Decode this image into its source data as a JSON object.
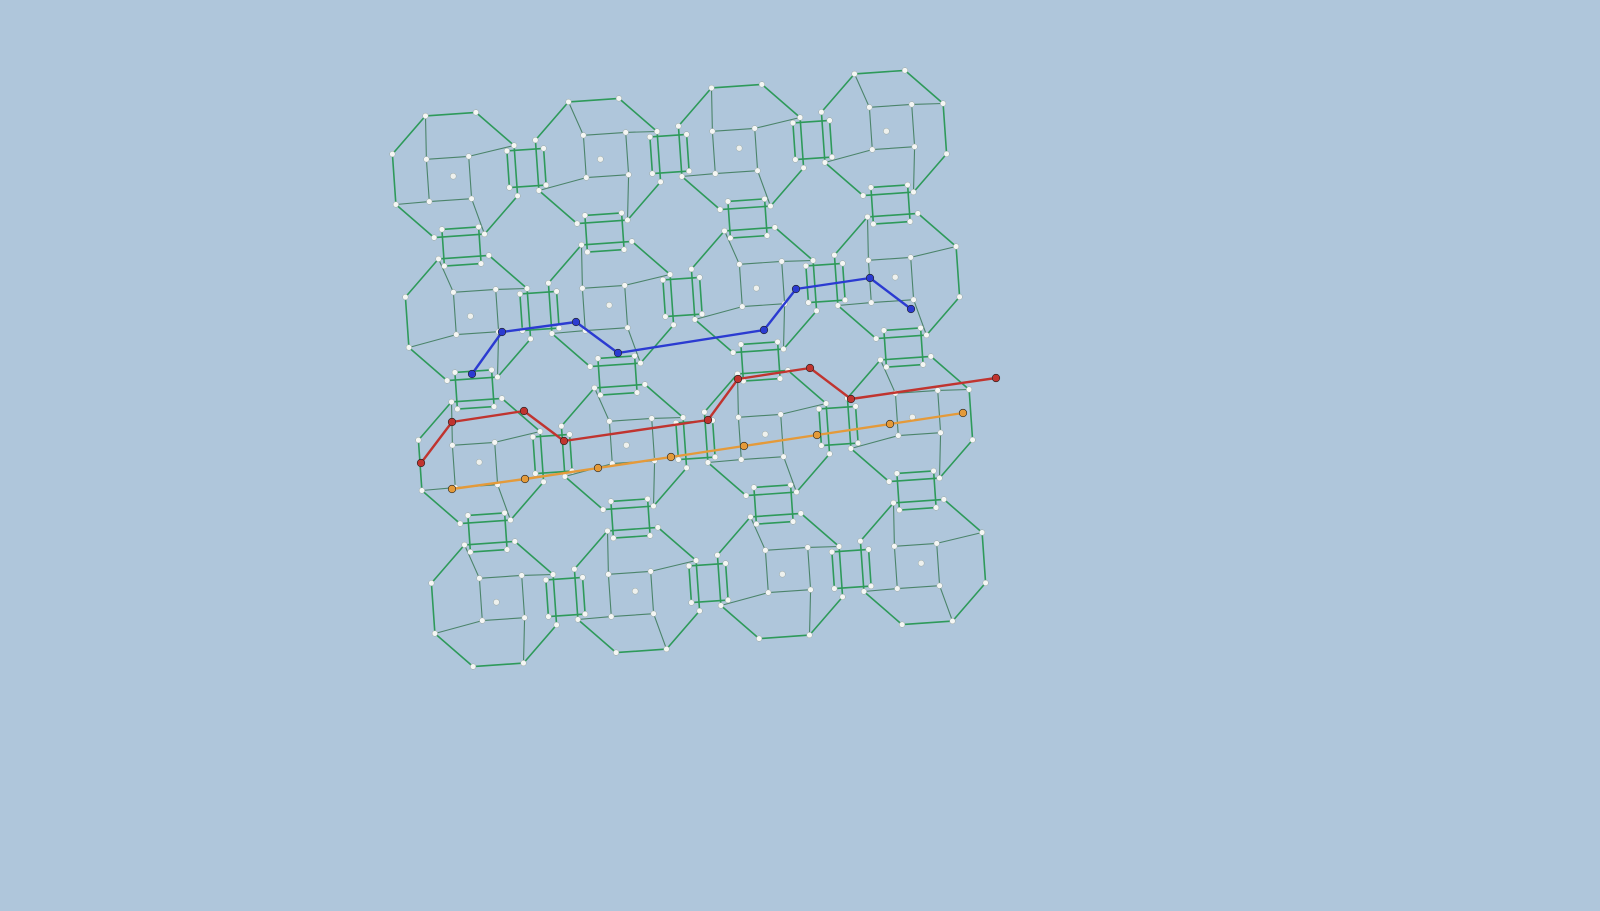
{
  "scene": {
    "description_colors": {
      "background": "#afc6db",
      "lattice_bond": "#2e9a5a",
      "atom": "#f4f6f4"
    },
    "highlighted_paths": [
      {
        "name": "blue-path",
        "color": "#2b3bd1"
      },
      {
        "name": "red-path",
        "color": "#c0342f"
      },
      {
        "name": "orange-path",
        "color": "#e49a3a"
      }
    ]
  }
}
